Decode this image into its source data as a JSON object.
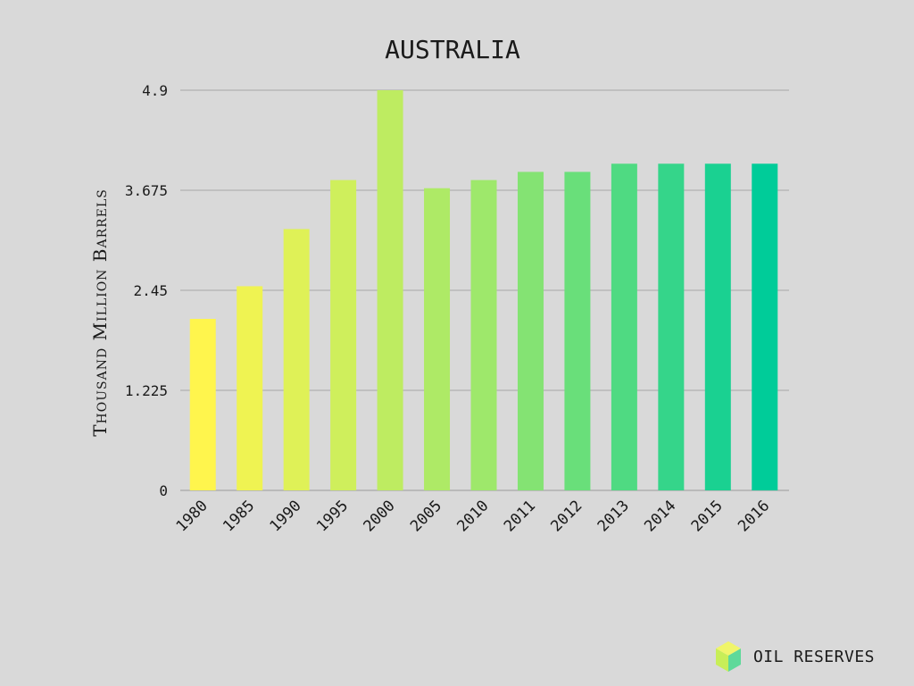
{
  "colors": {
    "background": "#d9d9d9",
    "gradient_start": "#fff54d",
    "gradient_mid": "#9ee86b",
    "gradient_end": "#00cc99",
    "logo_top": "#f0f56a",
    "logo_left": "#c8ee58",
    "logo_right": "#5fd99a"
  },
  "brand": {
    "label": "OIL RESERVES",
    "logo_icon": "cube-icon"
  },
  "chart_data": {
    "type": "bar",
    "title": "AUSTRALIA",
    "ylabel": "Thousand Million Barrels",
    "xlabel": "",
    "ylim": [
      0,
      4.9
    ],
    "yticks": [
      "0",
      "1.225",
      "2.45",
      "3.675",
      "4.9"
    ],
    "grid": true,
    "categories": [
      "1980",
      "1985",
      "1990",
      "1995",
      "2000",
      "2005",
      "2010",
      "2011",
      "2012",
      "2013",
      "2014",
      "2015",
      "2016"
    ],
    "values": [
      2.1,
      2.5,
      3.2,
      3.8,
      4.9,
      3.7,
      3.8,
      3.9,
      3.9,
      4.0,
      4.0,
      4.0,
      4.0
    ]
  }
}
